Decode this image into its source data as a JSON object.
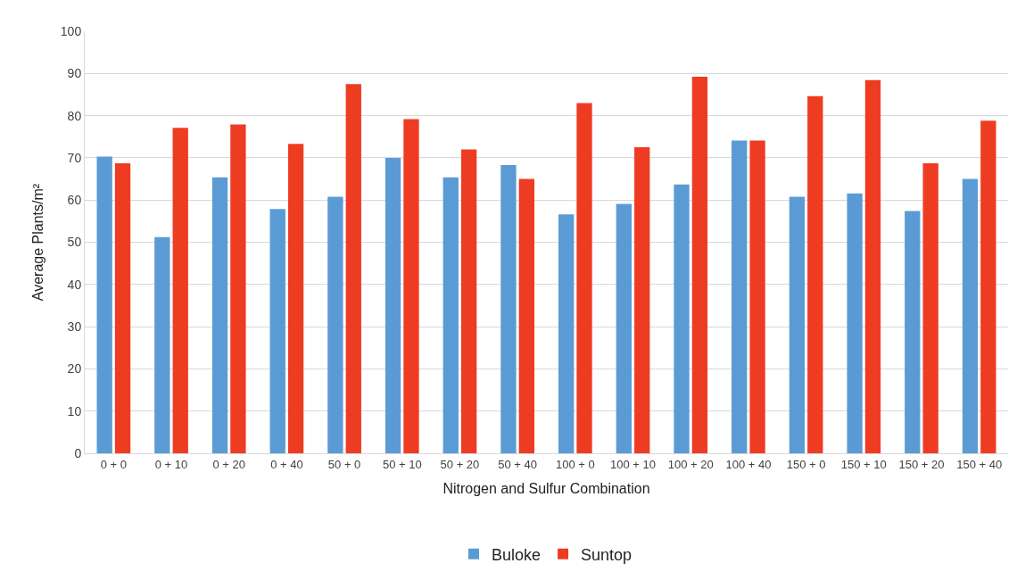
{
  "chart_data": {
    "type": "bar",
    "xlabel": "Nitrogen and Sulfur Combination",
    "ylabel": "Average Plants/m²",
    "categories": [
      "0 + 0",
      "0 + 10",
      "0 + 20",
      "0 + 40",
      "50 + 0",
      "50 + 10",
      "50 + 20",
      "50 + 40",
      "100 + 0",
      "100 + 10",
      "100 + 20",
      "100 + 40",
      "150 + 0",
      "150 + 10",
      "150 + 20",
      "150 + 40"
    ],
    "series": [
      {
        "name": "Buloke",
        "color": "#5b9bd5",
        "values": [
          70.3,
          51.2,
          65.4,
          57.9,
          60.8,
          70,
          65.4,
          68.3,
          56.6,
          59.1,
          63.7,
          74.1,
          60.8,
          61.6,
          57.4,
          65
        ]
      },
      {
        "name": "Suntop",
        "color": "#ee3c23",
        "values": [
          68.7,
          77.1,
          77.9,
          73.3,
          87.5,
          79.2,
          72,
          65,
          83,
          72.5,
          89.2,
          74.1,
          84.6,
          88.4,
          68.7,
          78.8
        ]
      }
    ],
    "ylim": [
      0,
      100
    ],
    "yticks": [
      0,
      10,
      20,
      30,
      40,
      50,
      60,
      70,
      80,
      90,
      100
    ],
    "grid": "y",
    "legend": "bottom"
  }
}
